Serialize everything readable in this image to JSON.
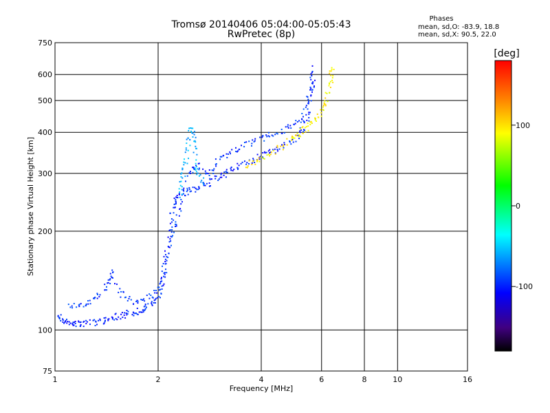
{
  "chart_data": {
    "type": "scatter",
    "title": "Tromsø 20140406 05:04:00-05:05:43",
    "subtitle": "RwPretec (8p)",
    "stats": {
      "header": "Phases",
      "line_o": "mean, sd,O: -83.9, 18.8",
      "line_x": "mean, sd,X:  90.5, 22.0"
    },
    "xlabel": "Frequency [MHz]",
    "ylabel": "Stationary phase Virtual Height [km]",
    "x_scale": "log",
    "y_scale": "log",
    "xlim": [
      1,
      16
    ],
    "ylim": [
      75,
      750
    ],
    "x_ticks": [
      1,
      2,
      4,
      6,
      8,
      10,
      16
    ],
    "x_tick_labels": [
      "1",
      "2",
      "4",
      "6",
      "8",
      "10",
      "16"
    ],
    "y_ticks": [
      75,
      100,
      200,
      300,
      400,
      500,
      600,
      750
    ],
    "y_tick_labels": [
      "75",
      "100",
      "200",
      "300",
      "400",
      "500",
      "600",
      "750"
    ],
    "grid": true,
    "colorbar": {
      "label": "[deg]",
      "range": [
        -180,
        180
      ],
      "ticks": [
        100,
        0,
        -100
      ],
      "tick_labels": [
        "100",
        "0",
        "-100"
      ]
    },
    "series": [
      {
        "mode": "O",
        "trace_points": [
          [
            1.0,
            112
          ],
          [
            1.05,
            108
          ],
          [
            1.1,
            106
          ],
          [
            1.15,
            105
          ],
          [
            1.2,
            105
          ],
          [
            1.3,
            106
          ],
          [
            1.4,
            108
          ],
          [
            1.5,
            110
          ],
          [
            1.6,
            112
          ],
          [
            1.7,
            114
          ],
          [
            1.8,
            116
          ],
          [
            1.9,
            120
          ],
          [
            2.0,
            127
          ],
          [
            2.05,
            140
          ],
          [
            2.1,
            165
          ],
          [
            2.15,
            200
          ],
          [
            2.2,
            232
          ],
          [
            2.25,
            252
          ],
          [
            2.35,
            262
          ],
          [
            2.5,
            268
          ],
          [
            2.7,
            276
          ],
          [
            2.9,
            288
          ],
          [
            3.1,
            300
          ],
          [
            3.3,
            310
          ],
          [
            3.6,
            325
          ],
          [
            3.9,
            338
          ],
          [
            4.2,
            350
          ],
          [
            4.6,
            362
          ],
          [
            5.0,
            382
          ],
          [
            5.3,
            412
          ],
          [
            5.5,
            462
          ],
          [
            5.6,
            540
          ],
          [
            5.65,
            640
          ]
        ],
        "phase_deg": -100
      },
      {
        "mode": "O-upper",
        "trace_points": [
          [
            1.1,
            118
          ],
          [
            1.2,
            120
          ],
          [
            1.3,
            124
          ],
          [
            1.4,
            135
          ],
          [
            1.45,
            152
          ],
          [
            1.55,
            130
          ],
          [
            1.7,
            122
          ],
          [
            1.85,
            125
          ],
          [
            2.0,
            135
          ],
          [
            2.1,
            160
          ],
          [
            2.2,
            200
          ],
          [
            2.3,
            230
          ],
          [
            2.45,
            300
          ],
          [
            2.6,
            320
          ],
          [
            2.8,
            300
          ],
          [
            3.0,
            330
          ],
          [
            3.3,
            350
          ],
          [
            3.6,
            370
          ],
          [
            4.0,
            385
          ],
          [
            4.4,
            400
          ],
          [
            4.8,
            415
          ],
          [
            5.2,
            440
          ],
          [
            5.5,
            520
          ],
          [
            5.6,
            610
          ]
        ],
        "phase_deg": -95
      },
      {
        "mode": "X",
        "trace_points": [
          [
            3.6,
            318
          ],
          [
            3.9,
            332
          ],
          [
            4.3,
            350
          ],
          [
            4.8,
            378
          ],
          [
            5.1,
            395
          ],
          [
            5.4,
            415
          ],
          [
            5.7,
            440
          ],
          [
            6.0,
            470
          ],
          [
            6.2,
            520
          ],
          [
            6.35,
            580
          ],
          [
            6.45,
            640
          ]
        ],
        "phase_deg": 110
      },
      {
        "mode": "E-spread",
        "trace_points": [
          [
            2.3,
            260
          ],
          [
            2.35,
            290
          ],
          [
            2.4,
            330
          ],
          [
            2.45,
            380
          ],
          [
            2.5,
            420
          ],
          [
            2.55,
            360
          ],
          [
            2.6,
            300
          ],
          [
            2.7,
            280
          ]
        ],
        "phase_deg": -60
      }
    ]
  }
}
